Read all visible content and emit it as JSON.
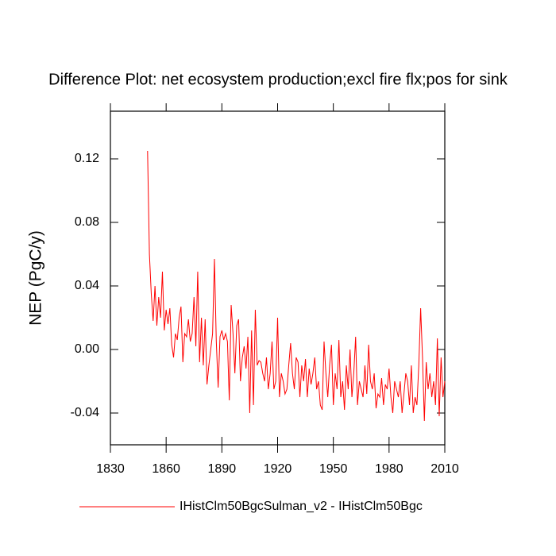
{
  "chart_data": {
    "type": "line",
    "title": "Difference Plot: net ecosystem production;excl fire flx;pos for sink",
    "y_label": "NEP  (PgC/y)",
    "x": [
      1850,
      1851,
      1852,
      1853,
      1854,
      1855,
      1856,
      1857,
      1858,
      1859,
      1860,
      1861,
      1862,
      1863,
      1864,
      1865,
      1866,
      1867,
      1868,
      1869,
      1870,
      1871,
      1872,
      1873,
      1874,
      1875,
      1876,
      1877,
      1878,
      1879,
      1880,
      1881,
      1882,
      1883,
      1884,
      1885,
      1886,
      1887,
      1888,
      1889,
      1890,
      1891,
      1892,
      1893,
      1894,
      1895,
      1896,
      1897,
      1898,
      1899,
      1900,
      1901,
      1902,
      1903,
      1904,
      1905,
      1906,
      1907,
      1908,
      1909,
      1910,
      1911,
      1912,
      1913,
      1914,
      1915,
      1916,
      1917,
      1918,
      1919,
      1920,
      1921,
      1922,
      1923,
      1924,
      1925,
      1926,
      1927,
      1928,
      1929,
      1930,
      1931,
      1932,
      1933,
      1934,
      1935,
      1936,
      1937,
      1938,
      1939,
      1940,
      1941,
      1942,
      1943,
      1944,
      1945,
      1946,
      1947,
      1948,
      1949,
      1950,
      1951,
      1952,
      1953,
      1954,
      1955,
      1956,
      1957,
      1958,
      1959,
      1960,
      1961,
      1962,
      1963,
      1964,
      1965,
      1966,
      1967,
      1968,
      1969,
      1970,
      1971,
      1972,
      1973,
      1974,
      1975,
      1976,
      1977,
      1978,
      1979,
      1980,
      1981,
      1982,
      1983,
      1984,
      1985,
      1986,
      1987,
      1988,
      1989,
      1990,
      1991,
      1992,
      1993,
      1994,
      1995,
      1996,
      1997,
      1998,
      1999,
      2000,
      2001,
      2002,
      2003,
      2004,
      2005,
      2006,
      2007,
      2008,
      2009,
      2010
    ],
    "series": [
      {
        "name": "IHistClm50BgcSulman_v2 - IHistClm50Bgc",
        "color": "#ff0000",
        "values": [
          0.125,
          0.06,
          0.035,
          0.018,
          0.04,
          0.015,
          0.033,
          0.02,
          0.049,
          0.012,
          0.025,
          0.016,
          0.026,
          0.003,
          -0.005,
          0.01,
          0.006,
          0.02,
          0.027,
          -0.008,
          0.01,
          0.008,
          0.019,
          0.005,
          0.01,
          0.033,
          0.002,
          0.049,
          -0.008,
          0.02,
          -0.01,
          0.019,
          -0.022,
          -0.01,
          0.0,
          0.01,
          0.057,
          0.005,
          -0.024,
          0.008,
          0.012,
          0.006,
          0.01,
          0.005,
          -0.032,
          0.028,
          0.01,
          -0.015,
          0.015,
          0.019,
          -0.02,
          -0.005,
          0.002,
          -0.012,
          0.008,
          -0.04,
          0.012,
          -0.035,
          0.025,
          -0.01,
          -0.007,
          -0.008,
          -0.015,
          -0.02,
          -0.005,
          -0.025,
          -0.015,
          0.005,
          -0.025,
          -0.02,
          0.02,
          -0.03,
          -0.015,
          -0.02,
          -0.028,
          -0.025,
          -0.01,
          0.004,
          -0.015,
          -0.025,
          -0.005,
          -0.008,
          -0.03,
          -0.01,
          -0.02,
          -0.006,
          -0.03,
          -0.012,
          -0.022,
          -0.015,
          -0.005,
          -0.025,
          -0.02,
          -0.035,
          -0.038,
          0.005,
          -0.015,
          -0.03,
          -0.01,
          0.003,
          -0.035,
          -0.015,
          -0.025,
          0.006,
          -0.03,
          -0.02,
          -0.038,
          -0.01,
          -0.025,
          0.0,
          -0.03,
          -0.015,
          0.008,
          -0.035,
          -0.02,
          -0.025,
          -0.03,
          -0.01,
          -0.028,
          0.003,
          -0.02,
          -0.025,
          -0.015,
          -0.037,
          -0.028,
          -0.03,
          -0.018,
          -0.035,
          -0.022,
          -0.025,
          -0.012,
          -0.03,
          -0.04,
          -0.02,
          -0.025,
          -0.03,
          -0.02,
          -0.04,
          -0.028,
          -0.015,
          -0.02,
          -0.035,
          -0.01,
          -0.04,
          -0.03,
          -0.035,
          -0.01,
          0.026,
          -0.005,
          -0.045,
          -0.008,
          -0.025,
          -0.015,
          -0.03,
          -0.02,
          -0.035,
          0.007,
          -0.042,
          -0.005,
          -0.03,
          -0.02
        ]
      }
    ],
    "xlim": [
      1830,
      2010
    ],
    "xticks": [
      1830,
      1860,
      1890,
      1920,
      1950,
      1980,
      2010
    ],
    "ylim": [
      -0.06,
      0.15
    ],
    "yticks": [
      -0.04,
      {
        "value": 0,
        "label": "0.00"
      },
      0.04,
      0.08,
      0.12
    ]
  }
}
